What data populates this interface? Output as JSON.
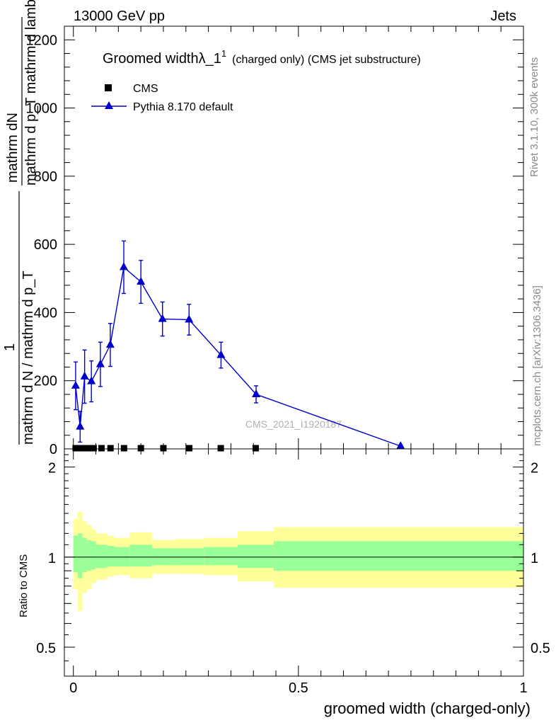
{
  "header": {
    "energy_label": "13000 GeV pp",
    "category_label": "Jets"
  },
  "side_labels": {
    "rivet": "Rivet 3.1.10,  300k events",
    "mcplots": "mcplots.cern.ch [arXiv:1306.3436]"
  },
  "watermark": "CMS_2021_I1920187",
  "colors": {
    "cms": "#000000",
    "pythia": "#0000cc",
    "band_inner": "#99ff99",
    "band_outer": "#ffff99"
  },
  "chart_data": [
    {
      "type": "scatter",
      "title_main": "Groomed width",
      "title_symbol": "λ_1",
      "title_sup": "1",
      "title_rest": "(charged only) (CMS jet substructure)",
      "ylabel_top": "mathrm dN",
      "ylabel_top_2": "mathrm d p_T mathrm d lambda",
      "ylabel_1": "1",
      "ylabel_bottom": "mathrm d N / mathrm d p_T",
      "ylim": [
        0,
        1240
      ],
      "xlim": [
        -0.02,
        1.0
      ],
      "yticks": [
        0,
        200,
        400,
        600,
        800,
        1000,
        1200
      ],
      "ytick_labels": [
        "0",
        "200",
        "400",
        "600",
        "800",
        "1000",
        "1200"
      ],
      "legend_position": "top-left",
      "series": [
        {
          "name": "CMS",
          "marker": "square",
          "x": [
            0.005,
            0.015,
            0.025,
            0.035,
            0.045,
            0.0625,
            0.0825,
            0.1125,
            0.15,
            0.2,
            0.2575,
            0.3275,
            0.405
          ],
          "y": [
            2,
            2,
            2,
            2,
            2,
            2,
            2,
            2,
            2,
            2,
            2,
            2,
            2
          ]
        },
        {
          "name": "Pythia 8.170 default",
          "marker": "triangle",
          "x": [
            0.005,
            0.015,
            0.025,
            0.04,
            0.06,
            0.082,
            0.112,
            0.15,
            0.198,
            0.257,
            0.328,
            0.406,
            0.727
          ],
          "y": [
            185,
            65,
            212,
            198,
            248,
            305,
            533,
            490,
            381,
            379,
            275,
            160,
            8
          ],
          "yerr": [
            70,
            45,
            78,
            60,
            65,
            63,
            77,
            63,
            50,
            45,
            38,
            25,
            3
          ]
        }
      ]
    },
    {
      "type": "area",
      "ylabel": "Ratio to CMS",
      "xlabel": "groomed width (charged-only)",
      "xlim": [
        -0.02,
        1.0
      ],
      "ylim": [
        0.4,
        2.3
      ],
      "yscale": "log",
      "yticks": [
        0.5,
        1,
        2
      ],
      "ytick_labels": [
        "0.5",
        "1",
        "2"
      ],
      "xticks": [
        0,
        0.5,
        1
      ],
      "xtick_labels": [
        "0",
        "0.5",
        "1"
      ],
      "reference_line": 1,
      "bands": [
        {
          "x0": 0.0,
          "x1": 0.01,
          "inner": [
            0.89,
            1.18
          ],
          "outer": [
            0.78,
            1.34
          ]
        },
        {
          "x0": 0.01,
          "x1": 0.02,
          "inner": [
            0.85,
            1.2
          ],
          "outer": [
            0.66,
            1.42
          ]
        },
        {
          "x0": 0.02,
          "x1": 0.03,
          "inner": [
            0.89,
            1.16
          ],
          "outer": [
            0.76,
            1.32
          ]
        },
        {
          "x0": 0.03,
          "x1": 0.04,
          "inner": [
            0.9,
            1.14
          ],
          "outer": [
            0.78,
            1.28
          ]
        },
        {
          "x0": 0.04,
          "x1": 0.05,
          "inner": [
            0.91,
            1.13
          ],
          "outer": [
            0.82,
            1.24
          ]
        },
        {
          "x0": 0.05,
          "x1": 0.075,
          "inner": [
            0.92,
            1.1
          ],
          "outer": [
            0.84,
            1.2
          ]
        },
        {
          "x0": 0.075,
          "x1": 0.09,
          "inner": [
            0.93,
            1.09
          ],
          "outer": [
            0.86,
            1.18
          ]
        },
        {
          "x0": 0.09,
          "x1": 0.125,
          "inner": [
            0.93,
            1.08
          ],
          "outer": [
            0.87,
            1.16
          ]
        },
        {
          "x0": 0.125,
          "x1": 0.175,
          "inner": [
            0.93,
            1.1
          ],
          "outer": [
            0.85,
            1.21
          ]
        },
        {
          "x0": 0.175,
          "x1": 0.225,
          "inner": [
            0.94,
            1.07
          ],
          "outer": [
            0.88,
            1.14
          ]
        },
        {
          "x0": 0.225,
          "x1": 0.29,
          "inner": [
            0.94,
            1.07
          ],
          "outer": [
            0.88,
            1.15
          ]
        },
        {
          "x0": 0.29,
          "x1": 0.365,
          "inner": [
            0.94,
            1.08
          ],
          "outer": [
            0.87,
            1.16
          ]
        },
        {
          "x0": 0.365,
          "x1": 0.445,
          "inner": [
            0.92,
            1.1
          ],
          "outer": [
            0.83,
            1.22
          ]
        },
        {
          "x0": 0.445,
          "x1": 1.0,
          "inner": [
            0.9,
            1.13
          ],
          "outer": [
            0.79,
            1.26
          ]
        }
      ]
    }
  ]
}
